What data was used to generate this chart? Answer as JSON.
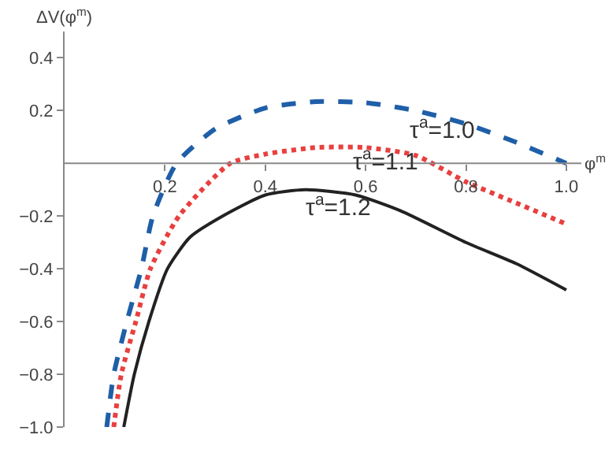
{
  "chart_data": {
    "type": "line",
    "xlabel": "φ$^{m}$",
    "ylabel": "ΔV(φ$^{m}$)",
    "xlim": [
      0,
      1.03
    ],
    "ylim": [
      -1.0,
      0.5
    ],
    "xticks": [
      0.2,
      0.4,
      0.6,
      0.8,
      {
        "value": 1.0,
        "label": "1.0"
      }
    ],
    "yticks": [
      {
        "value": -1.0,
        "label": "−1.0"
      },
      {
        "value": -0.8,
        "label": "−0.8"
      },
      {
        "value": -0.6,
        "label": "−0.6"
      },
      {
        "value": -0.4,
        "label": "−0.4"
      },
      {
        "value": -0.2,
        "label": "−0.2"
      },
      0.2,
      0.4
    ],
    "grid": false,
    "legend": false,
    "series": [
      {
        "name": "τ$^{a}$=1.0",
        "color": "#1f5fa8",
        "line_style": "dashed",
        "x": [
          0.084,
          0.098,
          0.124,
          0.153,
          0.176,
          0.223,
          0.3,
          0.4,
          0.5,
          0.6,
          0.7,
          0.8,
          0.9,
          1.0
        ],
        "values": [
          -1.0,
          -0.8,
          -0.6,
          -0.4,
          -0.2,
          0,
          0.13,
          0.21,
          0.234,
          0.23,
          0.2,
          0.15,
          0.08,
          0
        ]
      },
      {
        "name": "τ$^{a}$=1.1",
        "color": "#e8403f",
        "line_style": "dotted",
        "x": [
          0.098,
          0.113,
          0.142,
          0.171,
          0.228,
          0.33,
          0.4,
          0.5,
          0.6,
          0.7,
          0.8,
          0.9,
          1.0
        ],
        "values": [
          -1.0,
          -0.8,
          -0.6,
          -0.4,
          -0.2,
          0,
          0.035,
          0.06,
          0.06,
          0.03,
          -0.07,
          -0.15,
          -0.23
        ]
      },
      {
        "name": "τ$^{a}$=1.2",
        "color": "#222222",
        "line_style": "solid",
        "x": [
          0.118,
          0.139,
          0.168,
          0.205,
          0.25,
          0.315,
          0.4,
          0.48,
          0.58,
          0.67,
          0.8,
          0.9,
          1.0
        ],
        "values": [
          -1.0,
          -0.8,
          -0.6,
          -0.4,
          -0.28,
          -0.2,
          -0.12,
          -0.1,
          -0.12,
          -0.18,
          -0.3,
          -0.38,
          -0.48
        ]
      }
    ]
  }
}
